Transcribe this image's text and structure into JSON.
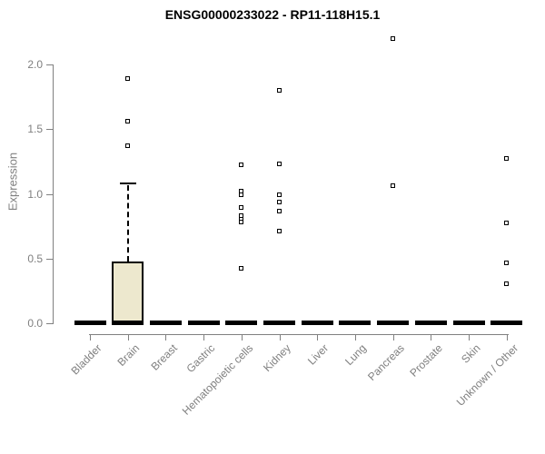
{
  "chart_data": {
    "type": "box",
    "title": "ENSG00000233022 - RP11-118H15.1",
    "ylabel": "Expression",
    "xlabel": "",
    "yticks": [
      "0.0",
      "0.5",
      "1.0",
      "1.5",
      "2.0"
    ],
    "ylim": [
      0.0,
      2.2
    ],
    "grid": false,
    "legend": null,
    "categories": [
      "Bladder",
      "Brain",
      "Breast",
      "Gastric",
      "Hematopoietic cells",
      "Kidney",
      "Liver",
      "Lung",
      "Pancreas",
      "Prostate",
      "Skin",
      "Unknown / Other"
    ],
    "boxes": [
      {
        "category": "Bladder",
        "whisker_low": 0,
        "q1": 0,
        "median": 0,
        "q3": 0,
        "whisker_high": 0,
        "outliers": []
      },
      {
        "category": "Brain",
        "whisker_low": 0,
        "q1": 0,
        "median": 0,
        "q3": 0.48,
        "whisker_high": 1.08,
        "outliers": [
          1.89,
          1.56,
          1.37
        ]
      },
      {
        "category": "Breast",
        "whisker_low": 0,
        "q1": 0,
        "median": 0,
        "q3": 0,
        "whisker_high": 0,
        "outliers": []
      },
      {
        "category": "Gastric",
        "whisker_low": 0,
        "q1": 0,
        "median": 0,
        "q3": 0,
        "whisker_high": 0,
        "outliers": []
      },
      {
        "category": "Hematopoietic cells",
        "whisker_low": 0,
        "q1": 0,
        "median": 0,
        "q3": 0,
        "whisker_high": 0,
        "outliers": [
          1.22,
          1.02,
          0.99,
          0.89,
          0.83,
          0.8,
          0.78,
          0.42
        ]
      },
      {
        "category": "Kidney",
        "whisker_low": 0,
        "q1": 0,
        "median": 0,
        "q3": 0,
        "whisker_high": 0,
        "outliers": [
          1.8,
          1.23,
          0.99,
          0.93,
          0.86,
          0.71
        ]
      },
      {
        "category": "Liver",
        "whisker_low": 0,
        "q1": 0,
        "median": 0,
        "q3": 0,
        "whisker_high": 0,
        "outliers": []
      },
      {
        "category": "Lung",
        "whisker_low": 0,
        "q1": 0,
        "median": 0,
        "q3": 0,
        "whisker_high": 0,
        "outliers": []
      },
      {
        "category": "Pancreas",
        "whisker_low": 0,
        "q1": 0,
        "median": 0,
        "q3": 0,
        "whisker_high": 0,
        "outliers": [
          2.2,
          1.06
        ]
      },
      {
        "category": "Prostate",
        "whisker_low": 0,
        "q1": 0,
        "median": 0,
        "q3": 0,
        "whisker_high": 0,
        "outliers": []
      },
      {
        "category": "Skin",
        "whisker_low": 0,
        "q1": 0,
        "median": 0,
        "q3": 0,
        "whisker_high": 0,
        "outliers": []
      },
      {
        "category": "Unknown / Other",
        "whisker_low": 0,
        "q1": 0,
        "median": 0,
        "q3": 0,
        "whisker_high": 0,
        "outliers": [
          1.27,
          0.77,
          0.46,
          0.3
        ]
      }
    ],
    "style": {
      "box_fill": "#EDE8CE",
      "box_border": "#000000",
      "axis_color": "#808080",
      "label_color": "#7F7F7F",
      "title_color": "#000000",
      "background": "#FFFFFF"
    }
  }
}
